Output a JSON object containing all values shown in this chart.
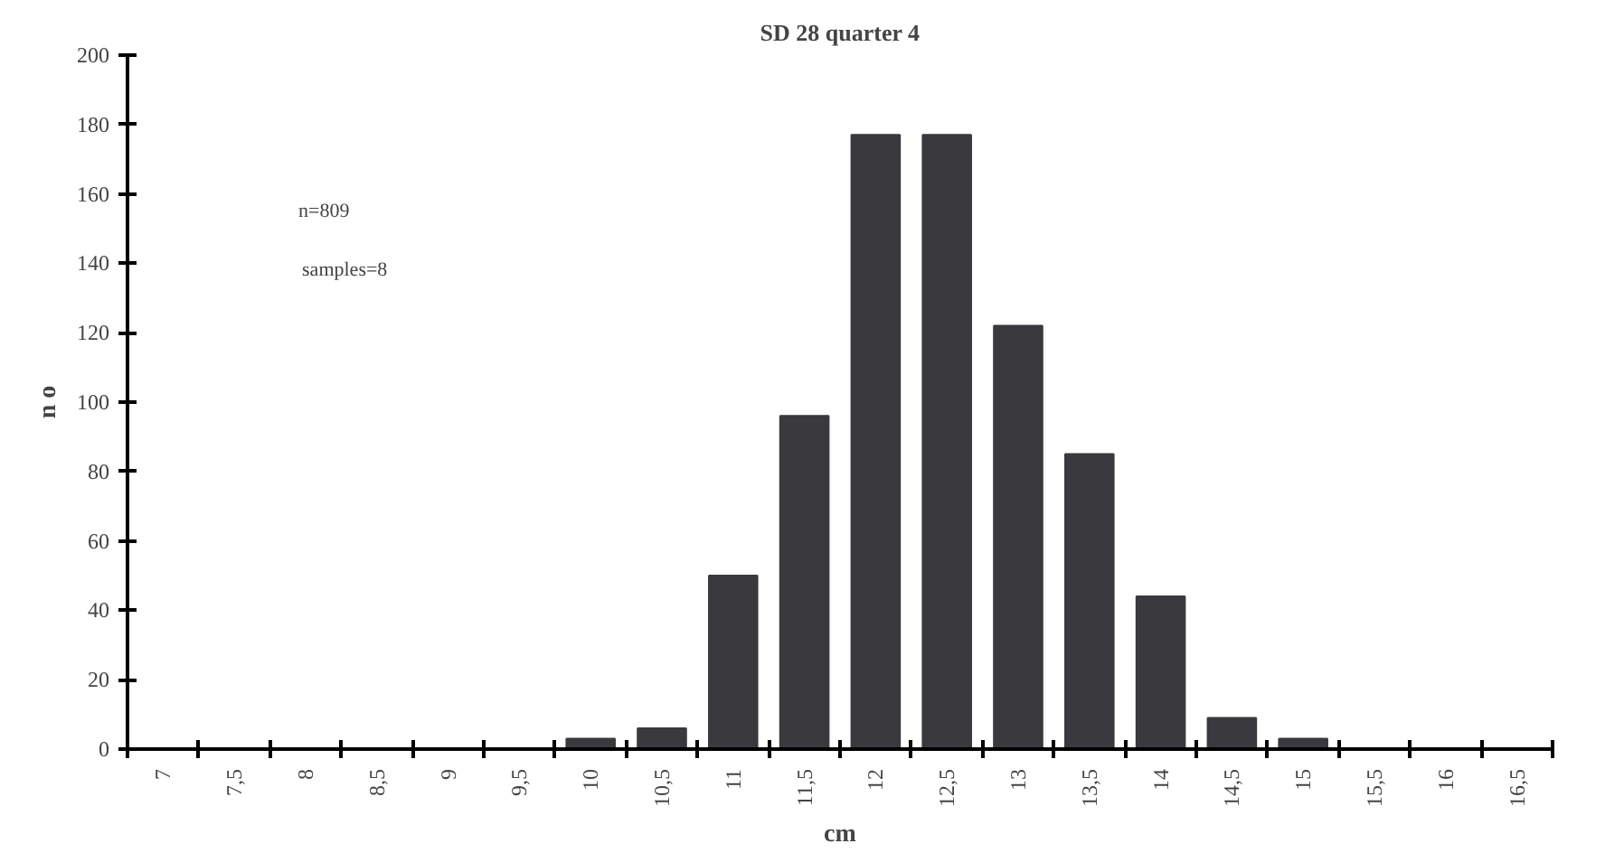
{
  "chart_data": {
    "type": "bar",
    "title": "SD 28 quarter 4",
    "xlabel": "cm",
    "ylabel": "n o",
    "categories": [
      "7",
      "7,5",
      "8",
      "8,5",
      "9",
      "9,5",
      "10",
      "10,5",
      "11",
      "11,5",
      "12",
      "12,5",
      "13",
      "13,5",
      "14",
      "14,5",
      "15",
      "15,5",
      "16",
      "16,5"
    ],
    "values": [
      0,
      0,
      0,
      0,
      0,
      0,
      3,
      6,
      50,
      96,
      177,
      177,
      122,
      85,
      44,
      9,
      3,
      0,
      0,
      0
    ],
    "color": "#3a3a3e",
    "ylim": [
      0,
      200
    ],
    "yticks": [
      0,
      20,
      40,
      60,
      80,
      100,
      120,
      140,
      160,
      180,
      200
    ],
    "grid": false,
    "annotations": [
      "n=809",
      "samples=8"
    ]
  }
}
